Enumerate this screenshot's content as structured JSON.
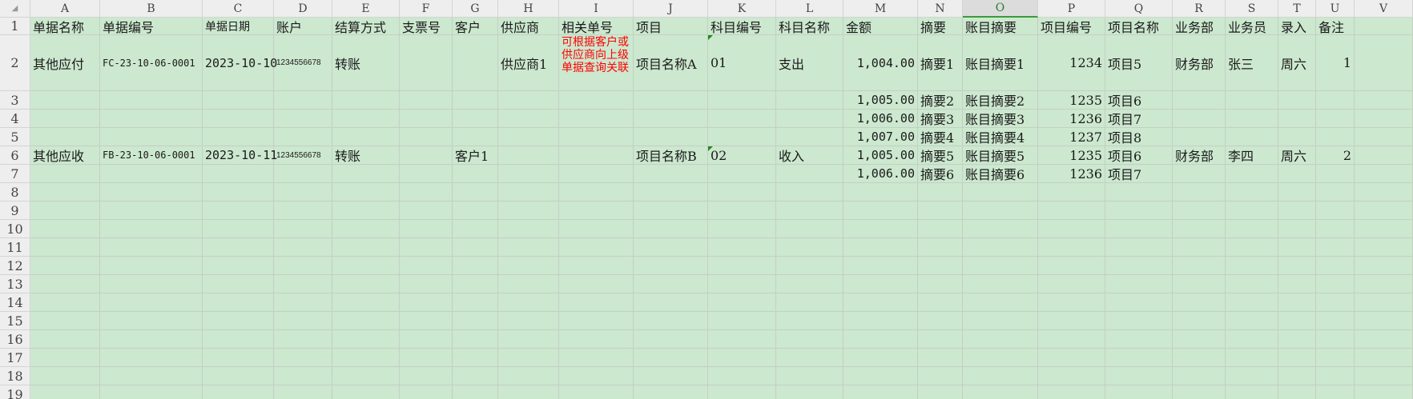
{
  "sheet": {
    "columns": [
      "A",
      "B",
      "C",
      "D",
      "E",
      "F",
      "G",
      "H",
      "I",
      "J",
      "K",
      "L",
      "M",
      "N",
      "O",
      "P",
      "Q",
      "R",
      "S",
      "T",
      "U",
      "V"
    ],
    "selected_column": "O",
    "row_numbers": [
      "1",
      "2",
      "3",
      "4",
      "5",
      "6",
      "7",
      "8",
      "9",
      "10",
      "11",
      "12",
      "13",
      "14",
      "15",
      "16",
      "17",
      "18",
      "19"
    ],
    "cell_background": "#cce8cf",
    "note_color": "#ff0000",
    "rows": {
      "1": {
        "A": "单据名称",
        "B": "单据编号",
        "C": "单据日期",
        "D": "账户",
        "E": "结算方式",
        "F": "支票号",
        "G": "客户",
        "H": "供应商",
        "I": "相关单号",
        "J": "项目",
        "K": "科目编号",
        "L": "科目名称",
        "M": "金额",
        "N": "摘要",
        "O": "账目摘要",
        "P": "项目编号",
        "Q": "项目名称",
        "R": "业务部",
        "S": "业务员",
        "T": "录入",
        "U": "备注"
      },
      "2": {
        "A": "其他应付",
        "B": "FC-23-10-06-0001",
        "C": "2023-10-10",
        "D": "1234556678",
        "E": "转账",
        "H": "供应商1",
        "I": "可根据客户或供应商向上级单据查询关联",
        "J": "项目名称A",
        "K": "01",
        "L": "支出",
        "M": "1,004.00",
        "N": "摘要1",
        "O": "账目摘要1",
        "P": "1234",
        "Q": "项目5",
        "R": "财务部",
        "S": "张三",
        "T": "周六",
        "U": "1"
      },
      "3": {
        "M": "1,005.00",
        "N": "摘要2",
        "O": "账目摘要2",
        "P": "1235",
        "Q": "项目6"
      },
      "4": {
        "M": "1,006.00",
        "N": "摘要3",
        "O": "账目摘要3",
        "P": "1236",
        "Q": "项目7"
      },
      "5": {
        "M": "1,007.00",
        "N": "摘要4",
        "O": "账目摘要4",
        "P": "1237",
        "Q": "项目8"
      },
      "6": {
        "A": "其他应收",
        "B": "FB-23-10-06-0001",
        "C": "2023-10-11",
        "D": "1234556678",
        "E": "转账",
        "G": "客户1",
        "J": "项目名称B",
        "K": "02",
        "L": "收入",
        "M": "1,005.00",
        "N": "摘要5",
        "O": "账目摘要5",
        "P": "1235",
        "Q": "项目6",
        "R": "财务部",
        "S": "李四",
        "T": "周六",
        "U": "2"
      },
      "7": {
        "M": "1,006.00",
        "N": "摘要6",
        "O": "账目摘要6",
        "P": "1236",
        "Q": "项目7"
      }
    }
  }
}
